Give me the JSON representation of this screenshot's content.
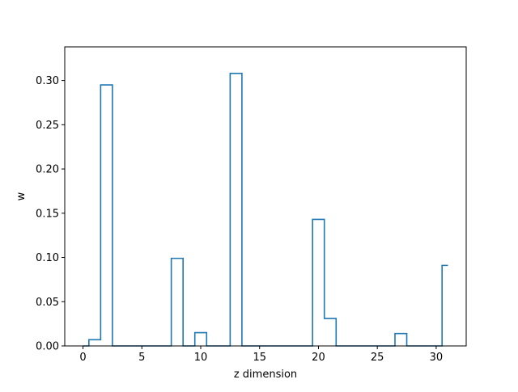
{
  "chart_data": {
    "type": "line",
    "drawstyle": "steps-mid",
    "title": "",
    "xlabel": "z dimension",
    "ylabel": "w",
    "xlim": [
      -1.55,
      32.55
    ],
    "ylim": [
      0.0,
      0.338
    ],
    "xticks": [
      0,
      5,
      10,
      15,
      20,
      25,
      30
    ],
    "xtick_labels": [
      "0",
      "5",
      "10",
      "15",
      "20",
      "25",
      "30"
    ],
    "yticks": [
      0.0,
      0.05,
      0.1,
      0.15,
      0.2,
      0.25,
      0.3
    ],
    "ytick_labels": [
      "0.00",
      "0.05",
      "0.10",
      "0.15",
      "0.20",
      "0.25",
      "0.30"
    ],
    "grid": false,
    "legend": "none",
    "series": [
      {
        "color": "#1f77b4",
        "x": [
          0,
          1,
          2,
          3,
          4,
          5,
          6,
          7,
          8,
          9,
          10,
          11,
          12,
          13,
          14,
          15,
          16,
          17,
          18,
          19,
          20,
          21,
          22,
          23,
          24,
          25,
          26,
          27,
          28,
          29,
          30,
          31
        ],
        "values": [
          0.0,
          0.007,
          0.295,
          0.0,
          0.0,
          0.0,
          0.0,
          0.0,
          0.099,
          0.0,
          0.015,
          0.0,
          0.0,
          0.308,
          0.0,
          0.0,
          0.0,
          0.0,
          0.0,
          0.0,
          0.143,
          0.031,
          0.0,
          0.0,
          0.0,
          0.0,
          0.0,
          0.014,
          0.0,
          0.0,
          0.0,
          0.091
        ]
      }
    ]
  }
}
